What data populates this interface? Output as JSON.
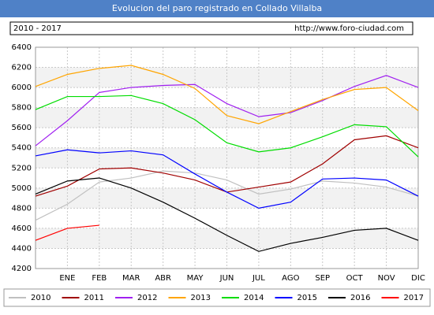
{
  "chart_data": {
    "type": "line",
    "title": "Evolucion del paro registrado en Collado Villalba",
    "subtitle": "2010 - 2017",
    "source": "http://www.foro-ciudad.com",
    "categories": [
      null,
      "ENE",
      "FEB",
      "MAR",
      "ABR",
      "MAY",
      "JUN",
      "JUL",
      "AGO",
      "SEP",
      "OCT",
      "NOV",
      "DIC"
    ],
    "ylim": [
      4200,
      6400
    ],
    "yticks": [
      4200,
      4400,
      4600,
      4800,
      5000,
      5200,
      5400,
      5600,
      5800,
      6000,
      6200,
      6400
    ],
    "grid": true,
    "series": [
      {
        "name": "2010",
        "color": "#c0c0c0",
        "values": [
          4680,
          4840,
          5060,
          5100,
          5170,
          5150,
          5080,
          4940,
          4990,
          5070,
          5050,
          5010,
          4920
        ]
      },
      {
        "name": "2011",
        "color": "#a00000",
        "values": [
          4920,
          5020,
          5190,
          5200,
          5150,
          5080,
          4960,
          5010,
          5060,
          5240,
          5480,
          5520,
          5400
        ]
      },
      {
        "name": "2012",
        "color": "#a020f0",
        "values": [
          5420,
          5670,
          5950,
          6000,
          6020,
          6030,
          5840,
          5710,
          5750,
          5870,
          6010,
          6120,
          6000
        ]
      },
      {
        "name": "2013",
        "color": "#ffa500",
        "values": [
          6010,
          6130,
          6190,
          6220,
          6130,
          5990,
          5720,
          5640,
          5760,
          5880,
          5980,
          6000,
          5770
        ]
      },
      {
        "name": "2014",
        "color": "#00dd00",
        "values": [
          5780,
          5910,
          5910,
          5920,
          5840,
          5680,
          5450,
          5360,
          5400,
          5510,
          5630,
          5610,
          5310
        ]
      },
      {
        "name": "2015",
        "color": "#0000ff",
        "values": [
          5320,
          5380,
          5350,
          5370,
          5330,
          5140,
          4960,
          4800,
          4860,
          5090,
          5100,
          5080,
          4920
        ]
      },
      {
        "name": "2016",
        "color": "#000000",
        "values": [
          4940,
          5070,
          5100,
          5000,
          4860,
          4700,
          4530,
          4370,
          4450,
          4510,
          4580,
          4600,
          4480
        ]
      },
      {
        "name": "2017",
        "color": "#ff0000",
        "values": [
          4480,
          4600,
          4630,
          null,
          null,
          null,
          null,
          null,
          null,
          null,
          null,
          null,
          null
        ]
      }
    ]
  }
}
